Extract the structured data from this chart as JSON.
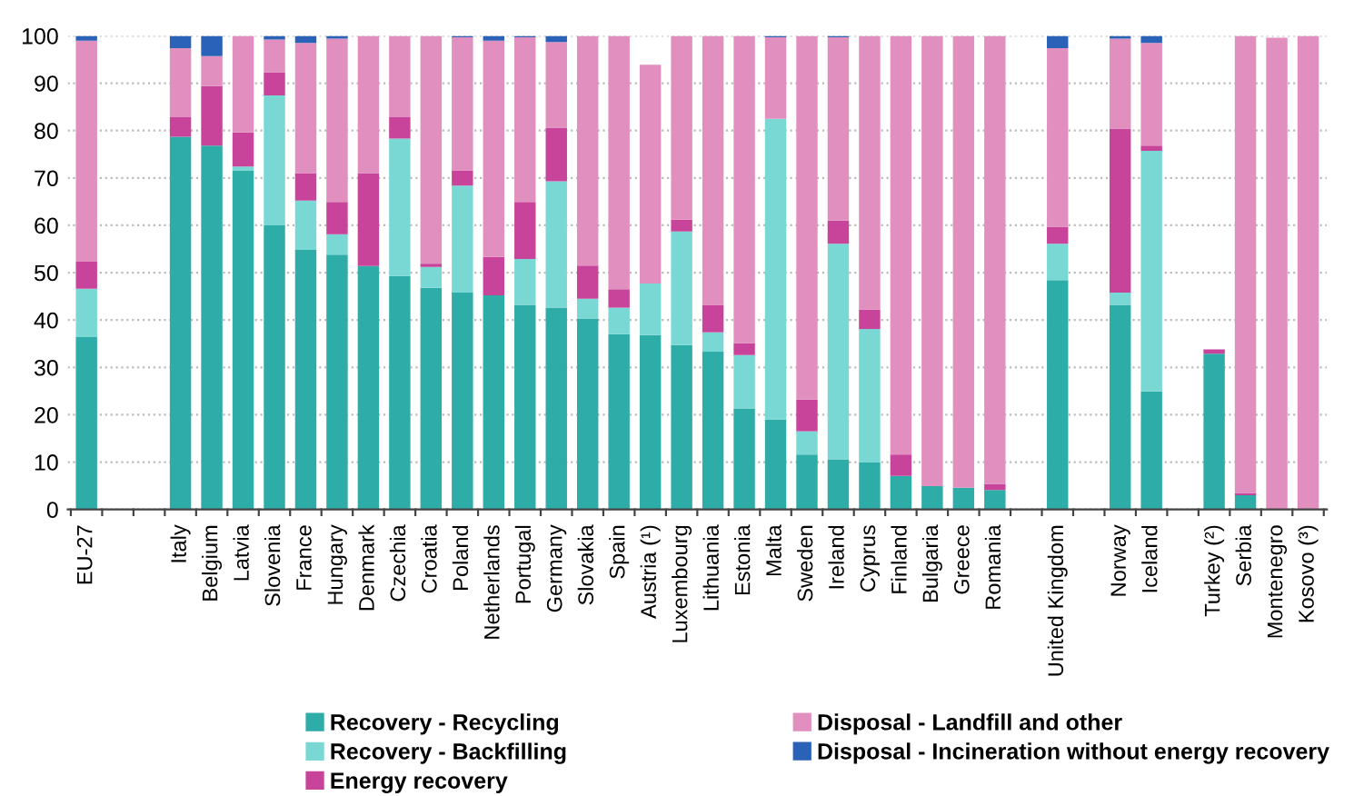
{
  "chart_data": {
    "type": "bar",
    "stacked": true,
    "categories": [
      "EU-27",
      null,
      null,
      "Italy",
      "Belgium",
      "Latvia",
      "Slovenia",
      "France",
      "Hungary",
      "Denmark",
      "Czechia",
      "Croatia",
      "Poland",
      "Netherlands",
      "Portugal",
      "Germany",
      "Slovakia",
      "Spain",
      "Austria (¹)",
      "Luxembourg",
      "Lithuania",
      "Estonia",
      "Malta",
      "Sweden",
      "Ireland",
      "Cyprus",
      "Finland",
      "Bulgaria",
      "Greece",
      "Romania",
      null,
      "United Kingdom",
      null,
      "Norway",
      "Iceland",
      null,
      "Turkey (²)",
      "Serbia",
      "Montenegro",
      "Kosovo (³)"
    ],
    "series": [
      {
        "name": "Recovery - Recycling",
        "color": "#2eaca8",
        "values": [
          36.4,
          null,
          null,
          78.7,
          76.8,
          71.6,
          60,
          54.8,
          53.8,
          51.4,
          49.3,
          46.8,
          45.8,
          45.2,
          43.2,
          42.6,
          40.3,
          37,
          36.8,
          34.7,
          33.3,
          21.3,
          19,
          11.6,
          10.6,
          9.9,
          7.1,
          4.9,
          4.6,
          4.1,
          null,
          48.4,
          null,
          43.2,
          24.9,
          null,
          32.9,
          3,
          null,
          0
        ]
      },
      {
        "name": "Recovery - Backfilling",
        "color": "#7ad8d4",
        "values": [
          10.2,
          null,
          null,
          0,
          0,
          0.8,
          27.4,
          10.4,
          4.3,
          0,
          29,
          4.4,
          22.6,
          0,
          9.7,
          26.7,
          4.2,
          5.6,
          10.9,
          24,
          4.1,
          11.3,
          63.5,
          4.9,
          45.5,
          28.2,
          0,
          0,
          0,
          0,
          null,
          7.7,
          null,
          2.6,
          50.8,
          null,
          0,
          0,
          0,
          0
        ]
      },
      {
        "name": "Energy recovery",
        "color": "#c8449a",
        "values": [
          5.7,
          null,
          null,
          4.1,
          12.6,
          7.2,
          4.9,
          5.8,
          6.8,
          19.6,
          4.5,
          0.7,
          3.2,
          8.1,
          12,
          11.3,
          7,
          3.9,
          0,
          2.5,
          5.8,
          2.5,
          0,
          6.7,
          4.9,
          4.1,
          4.5,
          0,
          0,
          1.3,
          null,
          3.6,
          null,
          34.6,
          1.1,
          null,
          0.9,
          0.5,
          0,
          0
        ]
      },
      {
        "name": "Disposal - Landfill and other",
        "color": "#e08fbf",
        "values": [
          46.7,
          null,
          null,
          14.6,
          6.3,
          20.4,
          6.9,
          27.5,
          34.5,
          29,
          17.2,
          48.1,
          28.1,
          45.7,
          34.8,
          18.1,
          48.5,
          53.5,
          46.2,
          38.8,
          56.8,
          64.9,
          17.2,
          76.8,
          38.7,
          57.8,
          88.4,
          95.1,
          95.4,
          94.6,
          null,
          37.7,
          null,
          19,
          21.7,
          null,
          0,
          96.5,
          99.6,
          100
        ]
      },
      {
        "name": "Disposal - Incineration without energy recovery",
        "color": "#2a62b8",
        "values": [
          1.0,
          null,
          null,
          2.6,
          4.3,
          0,
          0.8,
          1.5,
          0.6,
          0,
          0,
          0,
          0.3,
          1.0,
          0.3,
          1.3,
          0,
          0,
          0,
          0,
          0,
          0,
          0.3,
          0,
          0.3,
          0,
          0,
          0,
          0,
          0,
          null,
          2.6,
          null,
          0.6,
          1.5,
          null,
          0,
          0,
          0,
          0
        ]
      }
    ],
    "ylim": [
      0,
      100
    ],
    "yticks": [
      0,
      10,
      20,
      30,
      40,
      50,
      60,
      70,
      80,
      90,
      100
    ],
    "grid": "y",
    "legend": "bottom"
  }
}
